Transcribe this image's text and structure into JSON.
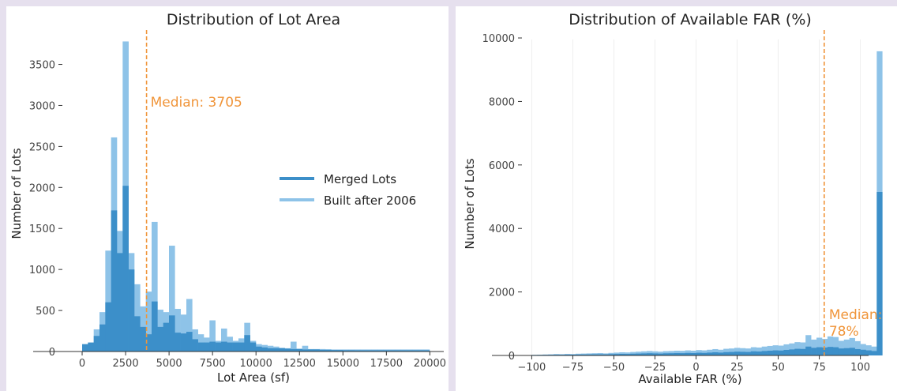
{
  "colors": {
    "merged": "#3c8fc9",
    "built": "#8ec3e8",
    "median": "#f0953a",
    "axis": "#333333",
    "grid": "#eeeeee"
  },
  "chart_data": [
    {
      "type": "bar",
      "subtype": "histogram-overlay",
      "title": "Distribution of Lot Area",
      "xlabel": "Lot Area (sf)",
      "ylabel": "Number of Lots",
      "xlim": [
        -1000,
        20800
      ],
      "ylim": [
        0,
        3900
      ],
      "xticks": [
        0,
        2500,
        5000,
        7500,
        10000,
        12500,
        15000,
        17500,
        20000
      ],
      "xtick_labels": [
        "0",
        "2500",
        "5000",
        "7500",
        "10000",
        "12500",
        "15000",
        "17500",
        "20000"
      ],
      "yticks": [
        0,
        500,
        1000,
        1500,
        2000,
        2500,
        3000,
        3500
      ],
      "ytick_labels": [
        "0",
        "500",
        "1000",
        "1500",
        "2000",
        "2500",
        "3000",
        "3500"
      ],
      "grid": false,
      "bin_start": 0,
      "bin_width": 333,
      "legend": {
        "position": "center-right",
        "entries": [
          "Merged Lots",
          "Built after 2006"
        ]
      },
      "series": [
        {
          "name": "Built after 2006",
          "values": [
            80,
            100,
            270,
            480,
            1230,
            2610,
            1470,
            3780,
            1200,
            820,
            550,
            730,
            1580,
            510,
            480,
            1290,
            520,
            450,
            640,
            270,
            210,
            170,
            380,
            130,
            280,
            180,
            130,
            160,
            350,
            130,
            90,
            80,
            70,
            60,
            45,
            40,
            120,
            35,
            70,
            30,
            30,
            30,
            28,
            25,
            25,
            25,
            25,
            25,
            25,
            25,
            25,
            25,
            25,
            25,
            25,
            25,
            25,
            25,
            25,
            25
          ]
        },
        {
          "name": "Merged Lots",
          "values": [
            90,
            110,
            190,
            330,
            600,
            1720,
            1200,
            2020,
            1000,
            430,
            300,
            210,
            610,
            300,
            350,
            440,
            230,
            220,
            240,
            150,
            110,
            110,
            120,
            110,
            120,
            110,
            110,
            110,
            200,
            110,
            60,
            50,
            40,
            40,
            40,
            35,
            30,
            30,
            25,
            25,
            25,
            20,
            20,
            18,
            18,
            16,
            16,
            15,
            15,
            15,
            15,
            15,
            15,
            15,
            15,
            15,
            15,
            15,
            15,
            15
          ]
        }
      ],
      "annotations": [
        {
          "text": "Median: 3705",
          "x": 3705
        }
      ]
    },
    {
      "type": "bar",
      "subtype": "histogram-overlay",
      "title": "Distribution of Available FAR (%)",
      "xlabel": "Available FAR (%)",
      "ylabel": "Number of Lots",
      "xlim": [
        -105,
        105
      ],
      "ylim": [
        0,
        10200
      ],
      "xticks": [
        -100,
        -75,
        -50,
        -25,
        0,
        25,
        50,
        75,
        100
      ],
      "xtick_labels": [
        "−100",
        "−75",
        "−50",
        "−25",
        "0",
        "25",
        "50",
        "75",
        "100"
      ],
      "yticks": [
        0,
        2000,
        4000,
        6000,
        8000,
        10000
      ],
      "ytick_labels": [
        "0",
        "2000",
        "4000",
        "6000",
        "8000",
        "10000"
      ],
      "grid": true,
      "bin_start": -100,
      "bin_width": 3.333,
      "series": [
        {
          "name": "Built after 2006",
          "values": [
            20,
            25,
            30,
            35,
            45,
            40,
            50,
            45,
            55,
            60,
            65,
            70,
            75,
            65,
            80,
            90,
            100,
            95,
            110,
            120,
            130,
            140,
            130,
            120,
            135,
            140,
            150,
            145,
            160,
            150,
            170,
            160,
            180,
            200,
            180,
            210,
            220,
            240,
            230,
            220,
            260,
            250,
            280,
            300,
            320,
            310,
            350,
            380,
            420,
            410,
            640,
            500,
            560,
            520,
            600,
            580,
            460,
            500,
            550,
            450,
            360,
            320,
            280,
            9580
          ]
        },
        {
          "name": "Merged Lots",
          "values": [
            15,
            15,
            18,
            20,
            22,
            22,
            25,
            25,
            28,
            30,
            32,
            35,
            35,
            35,
            40,
            45,
            50,
            48,
            55,
            60,
            65,
            70,
            65,
            60,
            68,
            70,
            75,
            72,
            80,
            75,
            85,
            80,
            90,
            100,
            90,
            105,
            110,
            120,
            115,
            110,
            130,
            125,
            140,
            150,
            160,
            155,
            175,
            190,
            210,
            205,
            280,
            240,
            260,
            250,
            270,
            260,
            220,
            230,
            240,
            200,
            180,
            160,
            140,
            5150
          ]
        }
      ],
      "annotations": [
        {
          "text": "Median:",
          "text2": "78%",
          "x": 78
        }
      ]
    }
  ]
}
